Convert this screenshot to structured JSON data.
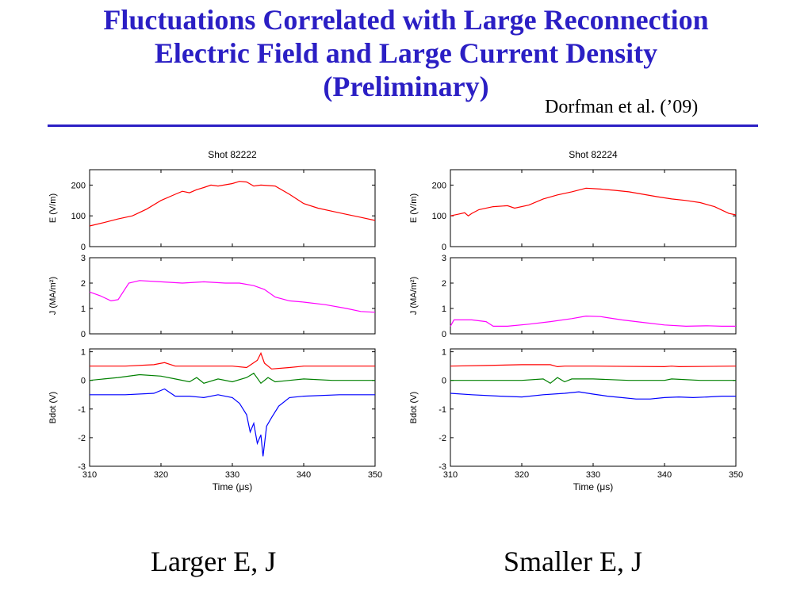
{
  "slide": {
    "title_line1": "Fluctuations Correlated with Large Reconnection",
    "title_line2": "Electric Field and Large Current Density",
    "title_line3": "(Preliminary)",
    "citation": "Dorfman et al. (’09)",
    "caption_left": "Larger E, J",
    "caption_right": "Smaller E, J",
    "title_color": "#2b1fc4"
  },
  "chart_data": [
    {
      "type": "line",
      "title": "Shot 82222",
      "xlabel": "Time (μs)",
      "xlim": [
        310,
        350
      ],
      "xticks": [
        310,
        320,
        330,
        340,
        350
      ],
      "panels": [
        {
          "ylabel": "E (V/m)",
          "ylim": [
            0,
            250
          ],
          "yticks": [
            0,
            100,
            200
          ],
          "series": [
            {
              "color": "#ff0000",
              "x": [
                310,
                312,
                314,
                316,
                318,
                320,
                322,
                323,
                324,
                325,
                326,
                327,
                328,
                330,
                331,
                332,
                333,
                334,
                336,
                338,
                340,
                342,
                344,
                346,
                348,
                350
              ],
              "y": [
                67,
                78,
                90,
                100,
                122,
                150,
                170,
                180,
                175,
                185,
                192,
                200,
                197,
                205,
                212,
                210,
                197,
                200,
                197,
                170,
                140,
                125,
                115,
                105,
                95,
                85
              ]
            }
          ]
        },
        {
          "ylabel": "J (MA/m²)",
          "ylim": [
            0,
            3
          ],
          "yticks": [
            0,
            1,
            2,
            3
          ],
          "series": [
            {
              "color": "#ff00ff",
              "x": [
                310,
                311.5,
                313,
                314,
                315.5,
                317,
                320,
                323,
                326,
                329,
                331,
                333,
                334.5,
                336,
                338,
                340,
                343,
                346,
                348,
                350
              ],
              "y": [
                1.65,
                1.5,
                1.3,
                1.35,
                2.0,
                2.1,
                2.05,
                2.0,
                2.05,
                2.0,
                2.0,
                1.9,
                1.75,
                1.45,
                1.3,
                1.25,
                1.15,
                1.0,
                0.88,
                0.85
              ]
            }
          ]
        },
        {
          "ylabel": "Bdot (V)",
          "ylim": [
            -3,
            1.1
          ],
          "yticks": [
            -3,
            -2,
            -1,
            0,
            1
          ],
          "series": [
            {
              "color": "#ff0000",
              "x": [
                310,
                315,
                319,
                320.5,
                322,
                325,
                330,
                332,
                333.5,
                334,
                334.5,
                335.5,
                338,
                340,
                345,
                350
              ],
              "y": [
                0.5,
                0.5,
                0.55,
                0.62,
                0.5,
                0.5,
                0.5,
                0.45,
                0.7,
                0.95,
                0.6,
                0.4,
                0.45,
                0.5,
                0.5,
                0.5
              ]
            },
            {
              "color": "#008000",
              "x": [
                310,
                312,
                314,
                317,
                320,
                322,
                324,
                325,
                326,
                328,
                330,
                332,
                333,
                334,
                335,
                336,
                338,
                340,
                344,
                350
              ],
              "y": [
                0.0,
                0.05,
                0.1,
                0.2,
                0.15,
                0.05,
                -0.05,
                0.1,
                -0.1,
                0.05,
                -0.05,
                0.1,
                0.25,
                -0.1,
                0.1,
                -0.05,
                0.0,
                0.05,
                0.0,
                0.0
              ]
            },
            {
              "color": "#0000ff",
              "x": [
                310,
                315,
                319,
                320.5,
                322,
                324,
                326,
                328,
                330,
                331,
                332,
                332.5,
                333,
                333.5,
                334,
                334.3,
                334.8,
                335.5,
                336.5,
                338,
                340,
                345,
                350
              ],
              "y": [
                -0.5,
                -0.5,
                -0.45,
                -0.3,
                -0.55,
                -0.55,
                -0.6,
                -0.5,
                -0.6,
                -0.8,
                -1.2,
                -1.8,
                -1.5,
                -2.2,
                -1.9,
                -2.65,
                -1.6,
                -1.3,
                -0.9,
                -0.6,
                -0.55,
                -0.5,
                -0.5
              ]
            }
          ]
        }
      ]
    },
    {
      "type": "line",
      "title": "Shot 82224",
      "xlabel": "Time (μs)",
      "xlim": [
        310,
        350
      ],
      "xticks": [
        310,
        320,
        330,
        340,
        350
      ],
      "panels": [
        {
          "ylabel": "E (V/m)",
          "ylim": [
            0,
            250
          ],
          "yticks": [
            0,
            100,
            200
          ],
          "series": [
            {
              "color": "#ff0000",
              "x": [
                310,
                311,
                312,
                312.5,
                313,
                314,
                316,
                318,
                319,
                321,
                323,
                325,
                327,
                329,
                331,
                333,
                335,
                337,
                339,
                341,
                343,
                345,
                347,
                349,
                350
              ],
              "y": [
                100,
                105,
                110,
                100,
                108,
                120,
                130,
                133,
                125,
                135,
                155,
                168,
                178,
                190,
                187,
                183,
                178,
                170,
                162,
                155,
                150,
                143,
                130,
                108,
                103
              ]
            }
          ]
        },
        {
          "ylabel": "J (MA/m²)",
          "ylim": [
            0,
            3
          ],
          "yticks": [
            0,
            1,
            2,
            3
          ],
          "series": [
            {
              "color": "#ff00ff",
              "x": [
                310,
                310.5,
                313,
                315,
                316,
                318,
                321,
                324,
                327,
                329,
                331,
                334,
                337,
                340,
                343,
                346,
                348,
                350
              ],
              "y": [
                0.3,
                0.55,
                0.55,
                0.48,
                0.3,
                0.3,
                0.38,
                0.48,
                0.6,
                0.7,
                0.68,
                0.55,
                0.45,
                0.35,
                0.3,
                0.32,
                0.3,
                0.3
              ]
            }
          ]
        },
        {
          "ylabel": "Bdot (V)",
          "ylim": [
            -3,
            1.1
          ],
          "yticks": [
            -3,
            -2,
            -1,
            0,
            1
          ],
          "series": [
            {
              "color": "#ff0000",
              "x": [
                310,
                315,
                320,
                324,
                325,
                326,
                330,
                340,
                341,
                342,
                350
              ],
              "y": [
                0.5,
                0.52,
                0.55,
                0.55,
                0.48,
                0.5,
                0.5,
                0.48,
                0.5,
                0.48,
                0.5
              ]
            },
            {
              "color": "#008000",
              "x": [
                310,
                315,
                320,
                323,
                324,
                325,
                326,
                327,
                330,
                335,
                340,
                341,
                345,
                350
              ],
              "y": [
                0.0,
                0.0,
                0.0,
                0.05,
                -0.1,
                0.1,
                -0.05,
                0.05,
                0.05,
                0.0,
                0.0,
                0.05,
                0.0,
                0.0
              ]
            },
            {
              "color": "#0000ff",
              "x": [
                310,
                313,
                317,
                320,
                323,
                326,
                328,
                330,
                332,
                334,
                336,
                338,
                340,
                342,
                344,
                346,
                348,
                350
              ],
              "y": [
                -0.45,
                -0.5,
                -0.55,
                -0.58,
                -0.5,
                -0.45,
                -0.4,
                -0.48,
                -0.55,
                -0.6,
                -0.65,
                -0.65,
                -0.6,
                -0.58,
                -0.6,
                -0.58,
                -0.55,
                -0.55
              ]
            }
          ]
        }
      ]
    }
  ]
}
